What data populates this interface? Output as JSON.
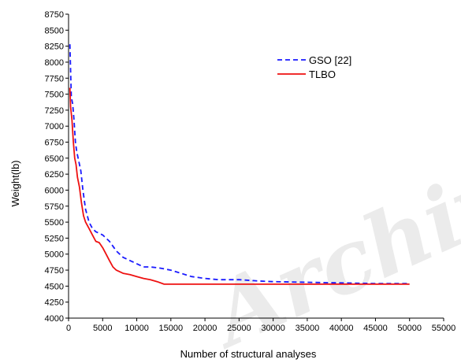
{
  "chart_data": {
    "type": "line",
    "title": "",
    "xlabel": "Number of structural analyses",
    "ylabel": "Weight(lb)",
    "xlim": [
      0,
      55000
    ],
    "ylim": [
      4000,
      8750
    ],
    "xticks": [
      0,
      5000,
      10000,
      15000,
      20000,
      25000,
      30000,
      35000,
      40000,
      45000,
      50000,
      55000
    ],
    "yticks": [
      4000,
      4250,
      4500,
      4750,
      5000,
      5250,
      5500,
      5750,
      6000,
      6250,
      6500,
      6750,
      7000,
      7250,
      7500,
      7750,
      8000,
      8250,
      8500,
      8750
    ],
    "grid": false,
    "legend_position": "top-right",
    "series": [
      {
        "name": "GSO [22]",
        "color": "#1a1aff",
        "style": "dashed",
        "x": [
          200,
          400,
          600,
          800,
          1000,
          1200,
          1500,
          1800,
          2100,
          2500,
          3000,
          3500,
          4000,
          5000,
          6000,
          7000,
          8000,
          9000,
          10000,
          11000,
          12000,
          13500,
          15000,
          16500,
          18000,
          20000,
          22000,
          25000,
          28000,
          30000,
          35000,
          40000,
          45000,
          50000
        ],
        "y": [
          8280,
          7450,
          7350,
          7100,
          6750,
          6600,
          6450,
          6300,
          6000,
          5700,
          5500,
          5400,
          5350,
          5300,
          5200,
          5050,
          4950,
          4900,
          4850,
          4800,
          4800,
          4780,
          4750,
          4700,
          4650,
          4620,
          4600,
          4600,
          4580,
          4570,
          4560,
          4550,
          4540,
          4540
        ]
      },
      {
        "name": "TLBO",
        "color": "#ee1111",
        "style": "solid",
        "x": [
          200,
          300,
          500,
          700,
          900,
          1100,
          1300,
          1600,
          1900,
          2200,
          2500,
          3000,
          3500,
          4000,
          4500,
          5000,
          5500,
          6000,
          6500,
          7000,
          8000,
          9000,
          10000,
          11000,
          12000,
          13000,
          14000,
          15000,
          20000,
          30000,
          40000,
          50000
        ],
        "y": [
          7600,
          7300,
          7100,
          6750,
          6500,
          6400,
          6200,
          6050,
          5800,
          5600,
          5500,
          5400,
          5300,
          5200,
          5180,
          5100,
          5000,
          4900,
          4800,
          4750,
          4700,
          4680,
          4650,
          4620,
          4600,
          4570,
          4530,
          4530,
          4530,
          4530,
          4530,
          4530
        ]
      }
    ]
  },
  "watermark_text": "Archive"
}
